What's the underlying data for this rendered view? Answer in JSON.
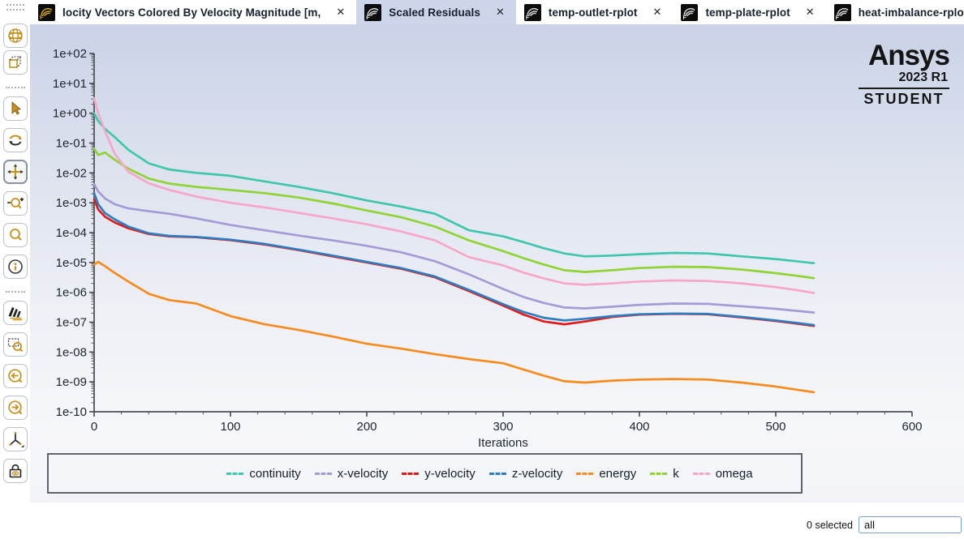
{
  "tab_bar": {
    "close_glyph": "✕",
    "tabs": [
      {
        "id": "velocity-vectors",
        "title": "locity Vectors Colored By Velocity Magnitude [m,",
        "active": false,
        "icon": "fluent-swirl-icon",
        "icon_color": "#d7a21f"
      },
      {
        "id": "scaled-residuals",
        "title": "Scaled Residuals",
        "active": true,
        "icon": "fluent-swirl-icon",
        "icon_color": "#d3d7dc"
      },
      {
        "id": "temp-outlet-rplot",
        "title": "temp-outlet-rplot",
        "active": false,
        "icon": "fluent-swirl-icon",
        "icon_color": "#d3d7dc"
      },
      {
        "id": "temp-plate-rplot",
        "title": "temp-plate-rplot",
        "active": false,
        "icon": "fluent-swirl-icon",
        "icon_color": "#d3d7dc"
      },
      {
        "id": "heat-imbalance-rplot",
        "title": "heat-imbalance-rplot",
        "active": false,
        "icon": "fluent-swirl-icon",
        "icon_color": "#d3d7dc"
      }
    ]
  },
  "toolbar": {
    "items": [
      "mesh-globe-icon",
      "perspective-box-icon",
      "pointer-select-icon",
      "rotate-view-icon",
      "pan-view-icon",
      "zoom-in-out-icon",
      "magnifier-icon",
      "info-probe-icon",
      "headlights-icon",
      "zoom-to-area-icon",
      "previous-view-icon",
      "next-view-icon",
      "axes-triad-icon",
      "lock-view-icon"
    ],
    "selected_item": "pan-view-icon"
  },
  "viewport": {
    "logo": {
      "brand": "Ansys",
      "release": "2023 R1",
      "edition": "STUDENT"
    }
  },
  "chart_data": {
    "type": "line",
    "title": "Scaled Residuals",
    "xlabel": "Iterations",
    "ylabel": "",
    "y_scale": "log10",
    "xlim": [
      0,
      600
    ],
    "ylim": [
      1e-10,
      100.0
    ],
    "grid": false,
    "legend_position": "bottom",
    "x_ticks": [
      "0",
      "100",
      "200",
      "300",
      "400",
      "500",
      "600"
    ],
    "y_tick_labels": [
      "1e+02",
      "1e+01",
      "1e+00",
      "1e-01",
      "1e-02",
      "1e-03",
      "1e-04",
      "1e-05",
      "1e-06",
      "1e-07",
      "1e-08",
      "1e-09",
      "1e-10"
    ],
    "x": [
      0,
      3,
      8,
      15,
      25,
      40,
      55,
      75,
      100,
      125,
      150,
      175,
      200,
      225,
      250,
      275,
      300,
      315,
      330,
      345,
      360,
      380,
      400,
      425,
      450,
      475,
      500,
      515,
      528
    ],
    "series": [
      {
        "name": "continuity",
        "color": "#3fc6ae",
        "values": [
          1.0,
          0.55,
          0.3,
          0.16,
          0.06,
          0.021,
          0.013,
          0.01,
          0.008,
          0.0052,
          0.0034,
          0.0021,
          0.0012,
          0.00075,
          0.00043,
          0.00012,
          7.5e-05,
          4.8e-05,
          3e-05,
          2e-05,
          1.6e-05,
          1.7e-05,
          1.9e-05,
          2.1e-05,
          2e-05,
          1.6e-05,
          1.3e-05,
          1.1e-05,
          9.5e-06
        ]
      },
      {
        "name": "x-velocity",
        "color": "#a49bd6",
        "values": [
          0.0042,
          0.0024,
          0.0014,
          0.0009,
          0.00065,
          0.00052,
          0.00043,
          0.0003,
          0.00018,
          0.00012,
          8e-05,
          5.5e-05,
          3.6e-05,
          2.2e-05,
          1.1e-05,
          4e-06,
          1.3e-06,
          7e-07,
          4.4e-07,
          3.1e-07,
          2.9e-07,
          3.3e-07,
          3.8e-07,
          4.2e-07,
          4.1e-07,
          3.4e-07,
          2.8e-07,
          2.4e-07,
          2.1e-07
        ]
      },
      {
        "name": "y-velocity",
        "color": "#e01b1b",
        "values": [
          0.0013,
          0.0006,
          0.00034,
          0.00022,
          0.00014,
          9e-05,
          7.5e-05,
          7e-05,
          5.6e-05,
          4e-05,
          2.6e-05,
          1.6e-05,
          1e-05,
          6.2e-06,
          3.2e-06,
          1.1e-06,
          3.6e-07,
          1.8e-07,
          1.05e-07,
          8.5e-08,
          1.05e-07,
          1.5e-07,
          1.8e-07,
          1.9e-07,
          1.85e-07,
          1.45e-07,
          1.1e-07,
          9e-08,
          7.5e-08
        ]
      },
      {
        "name": "z-velocity",
        "color": "#2e7dc1",
        "values": [
          0.0021,
          0.0009,
          0.00045,
          0.00028,
          0.00016,
          9.5e-05,
          7.8e-05,
          7.2e-05,
          5.8e-05,
          4.2e-05,
          2.7e-05,
          1.7e-05,
          1.05e-05,
          6.5e-06,
          3.4e-06,
          1.2e-06,
          4e-07,
          2.2e-07,
          1.4e-07,
          1.15e-07,
          1.3e-07,
          1.6e-07,
          1.85e-07,
          1.95e-07,
          1.9e-07,
          1.5e-07,
          1.15e-07,
          9.5e-08,
          8e-08
        ]
      },
      {
        "name": "energy",
        "color": "#f78b1e",
        "values": [
          8.5e-06,
          1.05e-05,
          7.5e-06,
          4.5e-06,
          2.3e-06,
          9e-07,
          5.5e-07,
          4.2e-07,
          1.6e-07,
          8.5e-08,
          5.5e-08,
          3.3e-08,
          1.9e-08,
          1.3e-08,
          8.5e-09,
          5.8e-09,
          4.2e-09,
          2.6e-09,
          1.6e-09,
          1.05e-09,
          9.5e-10,
          1.1e-09,
          1.2e-09,
          1.25e-09,
          1.2e-09,
          9.5e-10,
          7e-10,
          5.5e-10,
          4.5e-10
        ]
      },
      {
        "name": "k",
        "color": "#8fd334",
        "values": [
          0.065,
          0.04,
          0.048,
          0.028,
          0.014,
          0.0065,
          0.0044,
          0.0034,
          0.0027,
          0.0021,
          0.0015,
          0.00095,
          0.00055,
          0.00033,
          0.00016,
          5.5e-05,
          2.4e-05,
          1.4e-05,
          8.5e-06,
          5.5e-06,
          4.8e-06,
          5.5e-06,
          6.5e-06,
          7.2e-06,
          7e-06,
          5.8e-06,
          4.4e-06,
          3.6e-06,
          3e-06
        ]
      },
      {
        "name": "omega",
        "color": "#f7a6c9",
        "values": [
          3.2,
          1.0,
          0.25,
          0.045,
          0.011,
          0.0045,
          0.0027,
          0.0016,
          0.001,
          0.0007,
          0.00046,
          0.0003,
          0.00019,
          0.00011,
          5.5e-05,
          1.5e-05,
          8e-06,
          4.6e-06,
          2.9e-06,
          2e-06,
          1.8e-06,
          2e-06,
          2.3e-06,
          2.5e-06,
          2.4e-06,
          2e-06,
          1.5e-06,
          1.2e-06,
          9.5e-07
        ]
      }
    ]
  },
  "status_bar": {
    "selected_label": "0 selected",
    "filter_value": "all"
  }
}
